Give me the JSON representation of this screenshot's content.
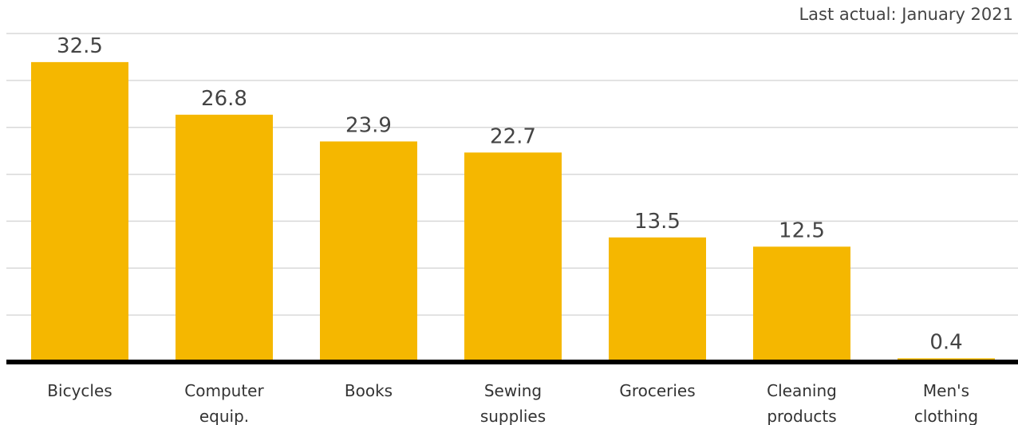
{
  "note": "Last actual: January 2021",
  "colors": {
    "bar": "#F5B700",
    "grid": "#d9d9d9",
    "axis": "#000000",
    "value_text": "#444444",
    "category_text": "#333333"
  },
  "chart_data": {
    "type": "bar",
    "title": "",
    "xlabel": "",
    "ylabel": "",
    "ylim": [
      0,
      35.6
    ],
    "grid": true,
    "categories": [
      [
        "Bicycles"
      ],
      [
        "Computer",
        "equip."
      ],
      [
        "Books"
      ],
      [
        "Sewing",
        "supplies"
      ],
      [
        "Groceries"
      ],
      [
        "Cleaning",
        "products"
      ],
      [
        "Men's",
        "clothing"
      ]
    ],
    "values": [
      32.5,
      26.8,
      23.9,
      22.7,
      13.5,
      12.5,
      0.4
    ],
    "value_labels": [
      "32.5",
      "26.8",
      "23.9",
      "22.7",
      "13.5",
      "12.5",
      "0.4"
    ]
  }
}
